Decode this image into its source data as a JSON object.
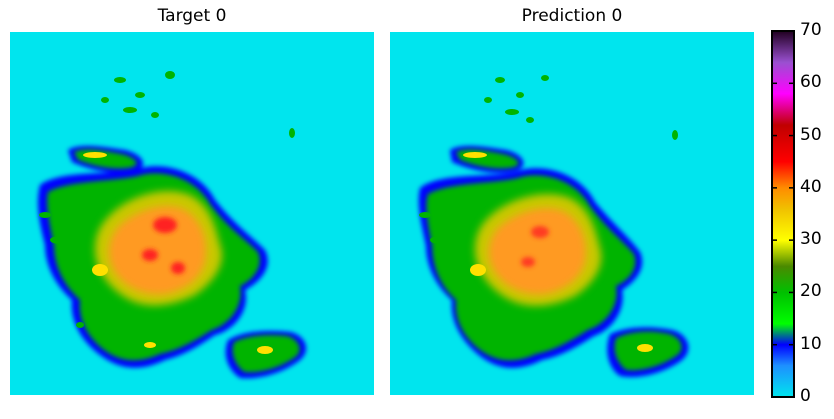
{
  "chart_data": [
    {
      "type": "heatmap",
      "title": "Target 0",
      "xlabel": "",
      "ylabel": "",
      "colorbar_range": [
        0,
        70
      ]
    },
    {
      "type": "heatmap",
      "title": "Prediction 0",
      "xlabel": "",
      "ylabel": "",
      "colorbar_range": [
        0,
        70
      ]
    }
  ],
  "colorbar": {
    "ticks": [
      0,
      10,
      20,
      30,
      40,
      50,
      60,
      70
    ],
    "tick_labels": [
      "0",
      "10",
      "20",
      "30",
      "40",
      "50",
      "60",
      "70"
    ],
    "stops": [
      {
        "value": 0,
        "color": "#00e5ee"
      },
      {
        "value": 6,
        "color": "#1e90ff"
      },
      {
        "value": 10,
        "color": "#0000ff"
      },
      {
        "value": 14,
        "color": "#00ff00"
      },
      {
        "value": 20,
        "color": "#00c000"
      },
      {
        "value": 25,
        "color": "#4a8a00"
      },
      {
        "value": 30,
        "color": "#ffff00"
      },
      {
        "value": 36,
        "color": "#f0c000"
      },
      {
        "value": 40,
        "color": "#ff8c00"
      },
      {
        "value": 45,
        "color": "#ff0000"
      },
      {
        "value": 52,
        "color": "#c00000"
      },
      {
        "value": 58,
        "color": "#ff00ff"
      },
      {
        "value": 64,
        "color": "#9a50d0"
      },
      {
        "value": 70,
        "color": "#200020"
      }
    ]
  },
  "colors": {
    "background_field": "#00e5ee",
    "outline": "#000000"
  }
}
